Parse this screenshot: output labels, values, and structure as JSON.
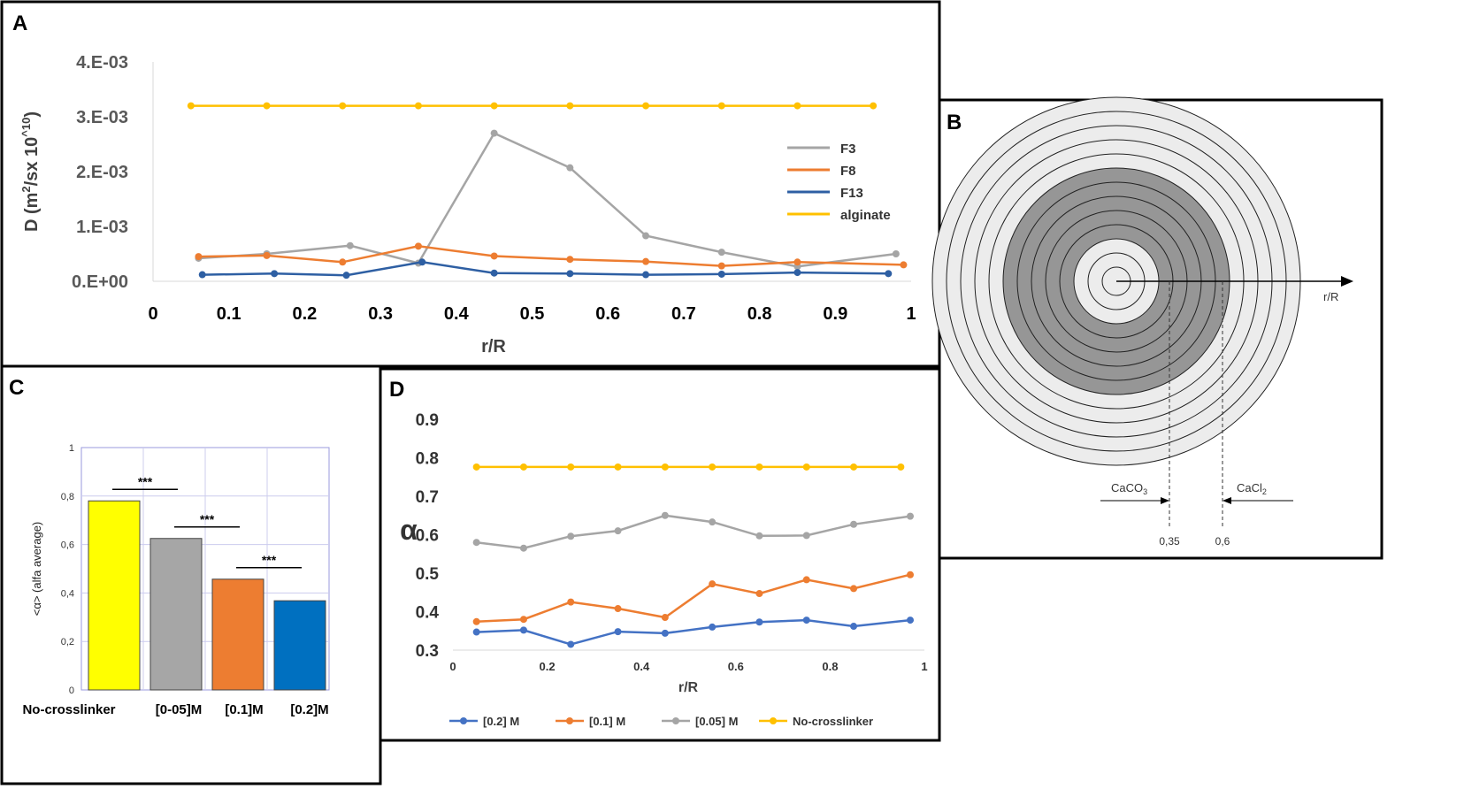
{
  "chart_data": [
    {
      "panel": "A",
      "type": "line",
      "xlabel": "r/R",
      "ylabel_main": "D (m",
      "ylabel_sup1": "2",
      "ylabel_mid": "/sx 10",
      "ylabel_sup2": "^10",
      "ylabel_end": ")",
      "xlim": [
        0,
        1
      ],
      "ylim": [
        0,
        0.004
      ],
      "x_ticks": [
        "0",
        "0.1",
        "0.2",
        "0.3",
        "0.4",
        "0.5",
        "0.6",
        "0.7",
        "0.8",
        "0.9",
        "1"
      ],
      "y_ticks": [
        "0.E+00",
        "1.E-03",
        "2.E-03",
        "3.E-03",
        "4.E-03"
      ],
      "legend_position": "right",
      "series": [
        {
          "name": "F3",
          "color": "#a5a5a5",
          "x": [
            0.06,
            0.15,
            0.26,
            0.35,
            0.45,
            0.55,
            0.65,
            0.75,
            0.85,
            0.98
          ],
          "y": [
            0.00042,
            0.0005,
            0.00065,
            0.00033,
            0.0027,
            0.00207,
            0.00083,
            0.00053,
            0.00027,
            0.0005
          ]
        },
        {
          "name": "F8",
          "color": "#ed7d31",
          "x": [
            0.06,
            0.15,
            0.25,
            0.35,
            0.45,
            0.55,
            0.65,
            0.75,
            0.85,
            0.99
          ],
          "y": [
            0.00045,
            0.00047,
            0.00035,
            0.00064,
            0.00046,
            0.0004,
            0.00036,
            0.00028,
            0.00035,
            0.0003
          ]
        },
        {
          "name": "F13",
          "color": "#2e5fa3",
          "x": [
            0.065,
            0.16,
            0.255,
            0.355,
            0.45,
            0.55,
            0.65,
            0.75,
            0.85,
            0.97
          ],
          "y": [
            0.00012,
            0.00014,
            0.00011,
            0.00035,
            0.00015,
            0.00014,
            0.00012,
            0.00013,
            0.00016,
            0.00014
          ]
        },
        {
          "name": "alginate",
          "color": "#ffc000",
          "x": [
            0.05,
            0.15,
            0.25,
            0.35,
            0.45,
            0.55,
            0.65,
            0.75,
            0.85,
            0.95
          ],
          "y": [
            0.0032,
            0.0032,
            0.0032,
            0.0032,
            0.0032,
            0.0032,
            0.0032,
            0.0032,
            0.0032,
            0.0032
          ]
        }
      ]
    },
    {
      "panel": "C",
      "type": "bar",
      "ylabel": "<α> (alfa average)",
      "ylim": [
        0,
        1
      ],
      "y_ticks": [
        "0",
        "0,2",
        "0,4",
        "0,6",
        "0,8",
        "1"
      ],
      "categories": [
        "No-crosslinker",
        "[0-05]M",
        "[0.1]M",
        "[0.2]M"
      ],
      "values": [
        0.78,
        0.625,
        0.457,
        0.368
      ],
      "colors": [
        "#ffff00",
        "#a6a6a6",
        "#ed7d31",
        "#0070c0"
      ],
      "significance": [
        "***",
        "***",
        "***"
      ]
    },
    {
      "panel": "D",
      "type": "line",
      "xlabel": "r/R",
      "ylabel": "α",
      "xlim": [
        0,
        1
      ],
      "ylim": [
        0.3,
        0.9
      ],
      "x_ticks": [
        "0",
        "0.2",
        "0.4",
        "0.6",
        "0.8",
        "1"
      ],
      "y_ticks": [
        "0.3",
        "0.4",
        "0.5",
        "0.6",
        "0.7",
        "0.8",
        "0.9"
      ],
      "legend_position": "bottom",
      "series": [
        {
          "name": "[0.2] M",
          "color": "#4472c4",
          "x": [
            0.05,
            0.15,
            0.25,
            0.35,
            0.45,
            0.55,
            0.65,
            0.75,
            0.85,
            0.97
          ],
          "y": [
            0.347,
            0.352,
            0.315,
            0.348,
            0.344,
            0.36,
            0.373,
            0.378,
            0.362,
            0.378
          ]
        },
        {
          "name": "[0.1] M",
          "color": "#ed7d31",
          "x": [
            0.05,
            0.15,
            0.25,
            0.35,
            0.45,
            0.55,
            0.65,
            0.75,
            0.85,
            0.97
          ],
          "y": [
            0.374,
            0.38,
            0.425,
            0.408,
            0.385,
            0.472,
            0.447,
            0.483,
            0.46,
            0.496
          ]
        },
        {
          "name": "[0.05] M",
          "color": "#a5a5a5",
          "x": [
            0.05,
            0.15,
            0.25,
            0.35,
            0.45,
            0.55,
            0.65,
            0.75,
            0.85,
            0.97
          ],
          "y": [
            0.58,
            0.565,
            0.596,
            0.61,
            0.65,
            0.633,
            0.597,
            0.598,
            0.627,
            0.648
          ]
        },
        {
          "name": "No-crosslinker",
          "color": "#ffc000",
          "x": [
            0.05,
            0.15,
            0.25,
            0.35,
            0.45,
            0.55,
            0.65,
            0.75,
            0.85,
            0.95
          ],
          "y": [
            0.776,
            0.776,
            0.776,
            0.776,
            0.776,
            0.776,
            0.776,
            0.776,
            0.776,
            0.776
          ]
        }
      ]
    }
  ],
  "panel_letters": {
    "a": "A",
    "b": "B",
    "c": "C",
    "d": "D"
  },
  "panel_b": {
    "axis_label": "r/R",
    "caco3_text": "CaCO",
    "caco3_sub": "3",
    "cacl2_text": "CaCl",
    "cacl2_sub": "2",
    "mark_035": "0,35",
    "mark_06": "0,6"
  }
}
